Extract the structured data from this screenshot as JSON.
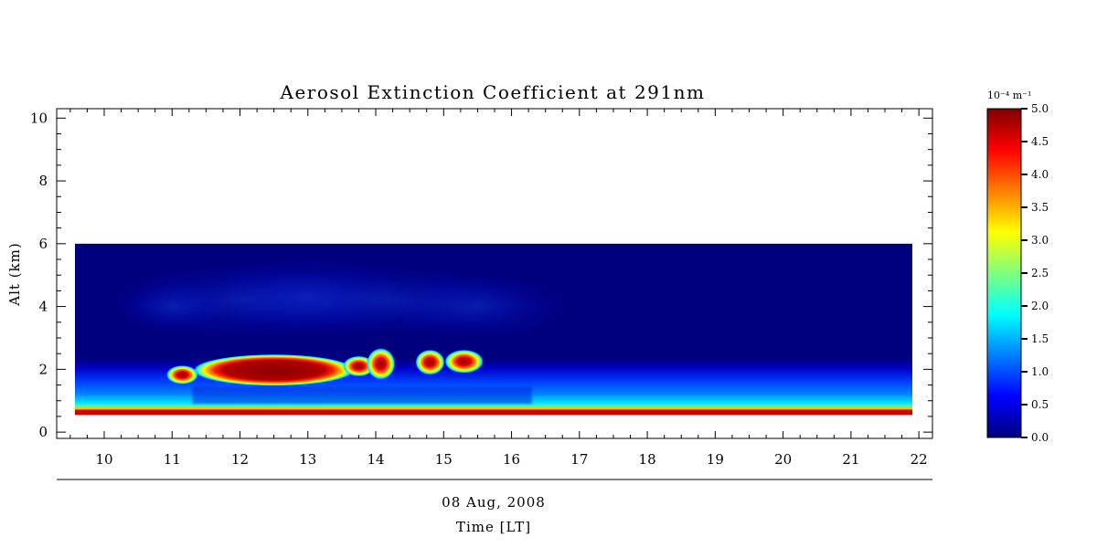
{
  "chart_data": {
    "type": "heatmap",
    "title": "Aerosol Extinction Coefficient at 291nm",
    "ylabel": "Alt (km)",
    "date_label": "08 Aug, 2008",
    "xlabel": "Time [LT]",
    "xlim": [
      9.3,
      22.2
    ],
    "ylim": [
      -0.2,
      10.3
    ],
    "x_ticks": [
      10,
      11,
      12,
      13,
      14,
      15,
      16,
      17,
      18,
      19,
      20,
      21,
      22
    ],
    "y_ticks": [
      0,
      2,
      4,
      6,
      8,
      10
    ],
    "data_extent": {
      "x": [
        9.3,
        22.2
      ],
      "y": [
        0.55,
        6.0
      ]
    },
    "colorbar": {
      "unit_text": "10⁻⁴ m⁻¹",
      "range": [
        0.0,
        5.0
      ],
      "ticks": [
        "0.0",
        "0.5",
        "1.0",
        "1.5",
        "2.0",
        "2.5",
        "3.0",
        "3.5",
        "4.0",
        "4.5",
        "5.0"
      ],
      "colormap": "jet"
    },
    "background_level": 0.2,
    "features": [
      {
        "name": "surface-layer",
        "x": [
          9.3,
          22.2
        ],
        "y": [
          0.55,
          0.72
        ],
        "value": 5.0
      },
      {
        "name": "aerosol-layer-main",
        "x": [
          11.45,
          13.55
        ],
        "y": [
          1.65,
          2.3
        ],
        "value": 5.0
      },
      {
        "name": "aerosol-blob-1",
        "x": [
          11.05,
          11.25
        ],
        "y": [
          1.7,
          1.95
        ],
        "value": 3.6
      },
      {
        "name": "aerosol-blob-2",
        "x": [
          13.65,
          13.85
        ],
        "y": [
          1.95,
          2.25
        ],
        "value": 4.6
      },
      {
        "name": "aerosol-blob-3",
        "x": [
          14.0,
          14.15
        ],
        "y": [
          1.85,
          2.5
        ],
        "value": 5.0
      },
      {
        "name": "aerosol-blob-4",
        "x": [
          14.72,
          14.88
        ],
        "y": [
          2.0,
          2.45
        ],
        "value": 5.0
      },
      {
        "name": "aerosol-blob-5",
        "x": [
          15.15,
          15.45
        ],
        "y": [
          2.05,
          2.45
        ],
        "value": 4.8
      }
    ],
    "colors": {
      "jet": [
        "#00007f",
        "#0000ff",
        "#007fff",
        "#00ffff",
        "#7fff7f",
        "#ffff00",
        "#ff7f00",
        "#ff0000",
        "#7f0000"
      ]
    }
  }
}
